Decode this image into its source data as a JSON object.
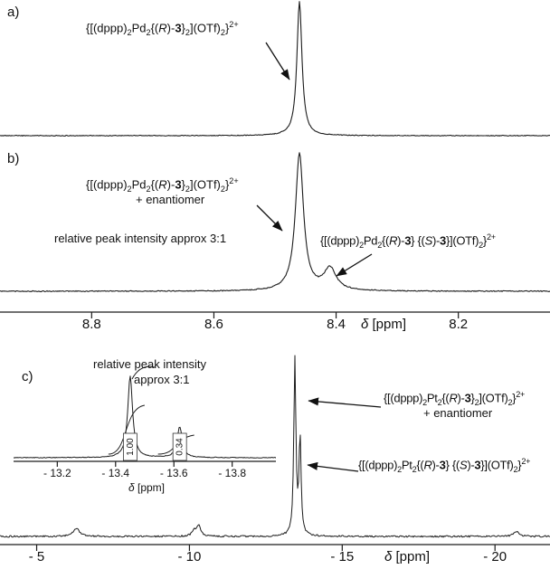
{
  "figure": {
    "background": "#ffffff",
    "trace_color": "#1c1c1c",
    "text_color": "#111111"
  },
  "panel_labels": {
    "a": "a)",
    "b": "b)",
    "c": "c)"
  },
  "annotations": {
    "a_main": {
      "formula": [
        {
          "t": "{[(dppp)"
        },
        {
          "t": "2",
          "s": "sub"
        },
        {
          "t": "Pd"
        },
        {
          "t": "2",
          "s": "sub"
        },
        {
          "t": "{("
        },
        {
          "t": "R",
          "s": "i"
        },
        {
          "t": ")-"
        },
        {
          "t": "3",
          "s": "b"
        },
        {
          "t": "}"
        },
        {
          "t": "2",
          "s": "sub"
        },
        {
          "t": "](OTf)"
        },
        {
          "t": "2",
          "s": "sub"
        },
        {
          "t": "}"
        },
        {
          "t": "2+",
          "s": "sup"
        }
      ]
    },
    "b_main": {
      "formula": [
        {
          "t": "{[(dppp)"
        },
        {
          "t": "2",
          "s": "sub"
        },
        {
          "t": "Pd"
        },
        {
          "t": "2",
          "s": "sub"
        },
        {
          "t": "{("
        },
        {
          "t": "R",
          "s": "i"
        },
        {
          "t": ")-"
        },
        {
          "t": "3",
          "s": "b"
        },
        {
          "t": "}"
        },
        {
          "t": "2",
          "s": "sub"
        },
        {
          "t": "](OTf)"
        },
        {
          "t": "2",
          "s": "sub"
        },
        {
          "t": "}"
        },
        {
          "t": "2+",
          "s": "sup"
        }
      ],
      "line2": "+ enantiomer"
    },
    "b_minor": {
      "formula": [
        {
          "t": "{[(dppp)"
        },
        {
          "t": "2",
          "s": "sub"
        },
        {
          "t": "Pd"
        },
        {
          "t": "2",
          "s": "sub"
        },
        {
          "t": "{("
        },
        {
          "t": "R",
          "s": "i"
        },
        {
          "t": ")-"
        },
        {
          "t": "3",
          "s": "b"
        },
        {
          "t": "} {("
        },
        {
          "t": "S",
          "s": "i"
        },
        {
          "t": ")-"
        },
        {
          "t": "3",
          "s": "b"
        },
        {
          "t": "}](OTf)"
        },
        {
          "t": "2",
          "s": "sub"
        },
        {
          "t": "}"
        },
        {
          "t": "2+",
          "s": "sup"
        }
      ]
    },
    "b_ratio": "relative peak intensity approx 3:1",
    "c_main": {
      "formula": [
        {
          "t": "{[(dppp)"
        },
        {
          "t": "2",
          "s": "sub"
        },
        {
          "t": "Pt"
        },
        {
          "t": "2",
          "s": "sub"
        },
        {
          "t": "{("
        },
        {
          "t": "R",
          "s": "i"
        },
        {
          "t": ")-"
        },
        {
          "t": "3",
          "s": "b"
        },
        {
          "t": "}"
        },
        {
          "t": "2",
          "s": "sub"
        },
        {
          "t": "](OTf)"
        },
        {
          "t": "2",
          "s": "sub"
        },
        {
          "t": "}"
        },
        {
          "t": "2+",
          "s": "sup"
        }
      ],
      "line2": "+ enantiomer"
    },
    "c_minor": {
      "formula": [
        {
          "t": "{[(dppp)"
        },
        {
          "t": "2",
          "s": "sub"
        },
        {
          "t": "Pt"
        },
        {
          "t": "2",
          "s": "sub"
        },
        {
          "t": "{("
        },
        {
          "t": "R",
          "s": "i"
        },
        {
          "t": ")-"
        },
        {
          "t": "3",
          "s": "b"
        },
        {
          "t": "} {("
        },
        {
          "t": "S",
          "s": "i"
        },
        {
          "t": ")-"
        },
        {
          "t": "3",
          "s": "b"
        },
        {
          "t": "}](OTf)"
        },
        {
          "t": "2",
          "s": "sub"
        },
        {
          "t": "}"
        },
        {
          "t": "2+",
          "s": "sup"
        }
      ]
    },
    "inset_ratio_line1": "relative peak intensity",
    "inset_ratio_line2": "approx 3:1"
  },
  "chart_data": [
    {
      "id": "panel-a",
      "type": "line",
      "panel": "a)",
      "x_unit": "ppm",
      "x_range": [
        8.95,
        8.05
      ],
      "shares_axis_with": "panel-b",
      "peaks": [
        {
          "ppm": 8.46,
          "rel_height": 1.0,
          "hwhm_ppm": 0.005,
          "assignment": "{[(dppp)₂Pd₂{(R)-3}₂](OTf)₂}²⁺"
        }
      ]
    },
    {
      "id": "panel-b",
      "type": "line",
      "panel": "b)",
      "x_unit": "ppm",
      "x_range": [
        8.95,
        8.05
      ],
      "xlabel": "δ [ppm]",
      "ticks": [
        {
          "ppm": 8.8,
          "label": "8.8"
        },
        {
          "ppm": 8.6,
          "label": "8.6"
        },
        {
          "ppm": 8.4,
          "label": "8.4"
        },
        {
          "ppm": 8.2,
          "label": "8.2"
        }
      ],
      "peaks": [
        {
          "ppm": 8.46,
          "rel_height": 1.0,
          "hwhm_ppm": 0.008,
          "assignment": "{[(dppp)₂Pd₂{(R)-3}₂](OTf)₂}²⁺ + enantiomer"
        },
        {
          "ppm": 8.41,
          "rel_height": 0.16,
          "hwhm_ppm": 0.012,
          "assignment": "{[(dppp)₂Pd₂{(R)-3} {(S)-3}](OTf)₂}²⁺"
        }
      ],
      "note": "relative peak intensity approx 3:1"
    },
    {
      "id": "panel-c",
      "type": "line",
      "panel": "c)",
      "x_unit": "ppm",
      "x_range": [
        -3.8,
        -21.8
      ],
      "xlabel": "δ [ppm]",
      "ticks": [
        {
          "ppm": -5,
          "label": "- 5"
        },
        {
          "ppm": -10,
          "label": "- 10"
        },
        {
          "ppm": -15,
          "label": "- 15"
        },
        {
          "ppm": -20,
          "label": "- 20"
        }
      ],
      "peaks": [
        {
          "ppm": -13.45,
          "rel_height": 1.0,
          "hwhm_ppm": 0.04,
          "assignment": "{[(dppp)₂Pt₂{(R)-3}₂](OTf)₂}²⁺ + enantiomer"
        },
        {
          "ppm": -13.62,
          "rel_height": 0.55,
          "hwhm_ppm": 0.04,
          "assignment": "{[(dppp)₂Pt₂{(R)-3} {(S)-3}](OTf)₂}²⁺"
        },
        {
          "ppm": -6.3,
          "rel_height": 0.045,
          "hwhm_ppm": 0.12
        },
        {
          "ppm": -10.3,
          "rel_height": 0.06,
          "hwhm_ppm": 0.08
        },
        {
          "ppm": -10.15,
          "rel_height": 0.03,
          "hwhm_ppm": 0.08
        },
        {
          "ppm": -20.7,
          "rel_height": 0.03,
          "hwhm_ppm": 0.1
        }
      ]
    },
    {
      "id": "panel-c-inset",
      "type": "line",
      "panel": "c) inset",
      "x_unit": "ppm",
      "x_range": [
        -13.05,
        -13.95
      ],
      "xlabel": "δ [ppm]",
      "ticks": [
        {
          "ppm": -13.2,
          "label": "- 13.2"
        },
        {
          "ppm": -13.4,
          "label": "- 13.4"
        },
        {
          "ppm": -13.6,
          "label": "- 13.6"
        },
        {
          "ppm": -13.8,
          "label": "- 13.8"
        }
      ],
      "peaks": [
        {
          "ppm": -13.45,
          "rel_height": 1.0,
          "hwhm_ppm": 0.01,
          "integral": "1.00"
        },
        {
          "ppm": -13.62,
          "rel_height": 0.38,
          "hwhm_ppm": 0.01,
          "integral": "0.34"
        }
      ],
      "note": "relative peak intensity approx 3:1"
    }
  ]
}
